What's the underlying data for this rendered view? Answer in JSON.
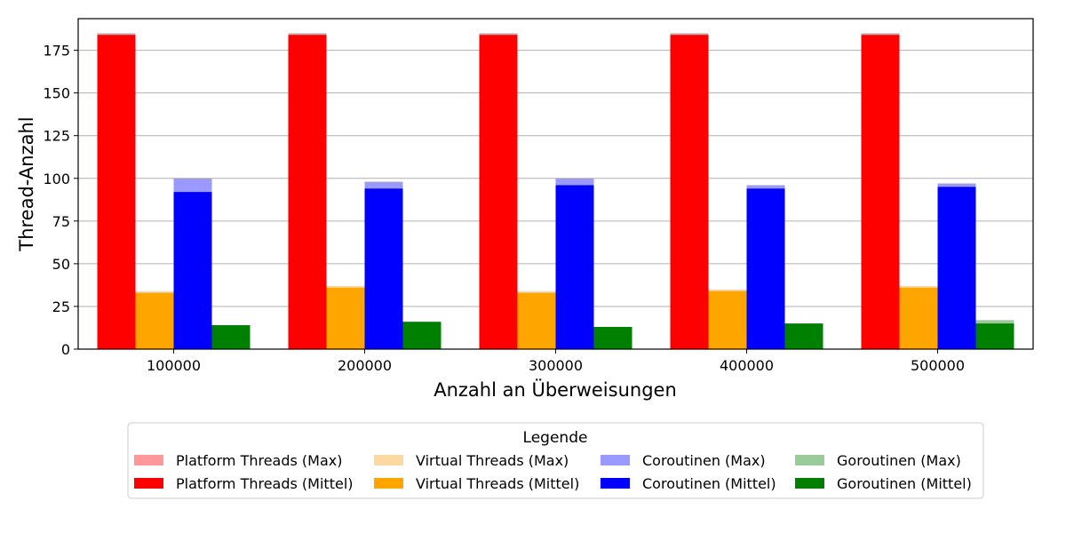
{
  "chart_data": {
    "type": "bar",
    "title": "",
    "xlabel": "Anzahl an Überweisungen",
    "ylabel": "Thread-Anzahl",
    "categories": [
      "100000",
      "200000",
      "300000",
      "400000",
      "500000"
    ],
    "ylim": [
      0,
      193.5
    ],
    "yticks": [
      0,
      25,
      50,
      75,
      100,
      125,
      150,
      175
    ],
    "grid": "horizontal",
    "groups": [
      {
        "max_name": "Platform Threads (Max)",
        "mean_name": "Platform Threads (Mittel)",
        "max_color": "#ff9999",
        "mean_color": "#ff0000",
        "max": [
          185,
          185,
          185,
          185,
          185
        ],
        "mean": [
          184,
          184,
          184,
          184,
          184
        ]
      },
      {
        "max_name": "Virtual Threads (Max)",
        "mean_name": "Virtual Threads (Mittel)",
        "max_color": "#fcd9a0",
        "mean_color": "#ffa500",
        "max": [
          34,
          37,
          34,
          35,
          37
        ],
        "mean": [
          33,
          36,
          33,
          34,
          36
        ]
      },
      {
        "max_name": "Coroutinen (Max)",
        "mean_name": "Coroutinen (Mittel)",
        "max_color": "#9999ff",
        "mean_color": "#0000ff",
        "max": [
          100,
          98,
          100,
          96,
          97
        ],
        "mean": [
          92,
          94,
          96,
          94,
          95
        ]
      },
      {
        "max_name": "Goroutinen (Max)",
        "mean_name": "Goroutinen (Mittel)",
        "max_color": "#99cc99",
        "mean_color": "#008000",
        "max": [
          14,
          16,
          13,
          15,
          17
        ],
        "mean": [
          14,
          16,
          13,
          15,
          15
        ]
      }
    ],
    "legend": {
      "title": "Legende",
      "placement": "bottom-center"
    }
  }
}
